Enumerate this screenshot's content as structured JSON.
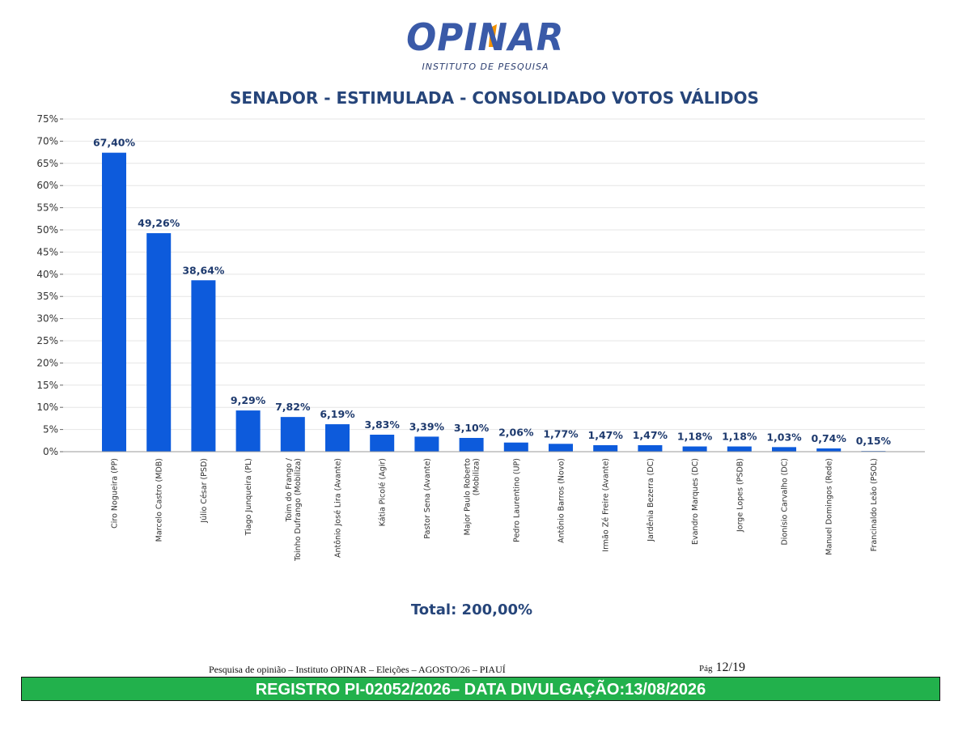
{
  "logo": {
    "brand": "OPINAR",
    "subtitle": "INSTITUTO DE PESQUISA"
  },
  "colors": {
    "bar": "#0d5bdc",
    "title": "#26457a",
    "label": "#1e3a6e",
    "grid": "#e6e6e6",
    "footer_bar": "#22b14c"
  },
  "chart_data": {
    "type": "bar",
    "title": "SENADOR - ESTIMULADA - CONSOLIDADO VOTOS VÁLIDOS",
    "xlabel": "",
    "ylabel": "",
    "ylim": [
      0,
      75
    ],
    "yticks": [
      "0%",
      "5%",
      "10%",
      "15%",
      "20%",
      "25%",
      "30%",
      "35%",
      "40%",
      "45%",
      "50%",
      "55%",
      "60%",
      "65%",
      "70%",
      "75%"
    ],
    "grid": true,
    "categories": [
      [
        "Ciro Nogueira (PP)"
      ],
      [
        "Marcelo Castro (MDB)"
      ],
      [
        "Júlio César (PSD)"
      ],
      [
        "Tiago Junqueira (PL)"
      ],
      [
        "Toim do Frango /",
        "Toinho Dufrango (Mobiliza)"
      ],
      [
        "Antônio José Lira (Avante)"
      ],
      [
        "Kátia Picolé (Agir)"
      ],
      [
        "Pastor Sena (Avante)"
      ],
      [
        "Major Paulo Roberto",
        "(Mobiliza)"
      ],
      [
        "Pedro Laurentino (UP)"
      ],
      [
        "Antônio Barros (Novo)"
      ],
      [
        "Irmão Zé Freire (Avante)"
      ],
      [
        "Jardênia Bezerra (DC)"
      ],
      [
        "Evandro Marques (DC)"
      ],
      [
        "Jorge Lopes (PSDB)"
      ],
      [
        "Dionísio Carvalho (DC)"
      ],
      [
        "Manuel Domingos (Rede)"
      ],
      [
        "Francinaldo Leão (PSOL)"
      ]
    ],
    "values": [
      67.4,
      49.26,
      38.64,
      9.29,
      7.82,
      6.19,
      3.83,
      3.39,
      3.1,
      2.06,
      1.77,
      1.47,
      1.47,
      1.18,
      1.18,
      1.03,
      0.74,
      0.15
    ],
    "value_labels": [
      "67,40%",
      "49,26%",
      "38,64%",
      "9,29%",
      "7,82%",
      "6,19%",
      "3,83%",
      "3,39%",
      "3,10%",
      "2,06%",
      "1,77%",
      "1,47%",
      "1,47%",
      "1,18%",
      "1,18%",
      "1,03%",
      "0,74%",
      "0,15%"
    ],
    "total_text": "Total: 200,00%"
  },
  "footer": {
    "text": "Pesquisa de opinião – Instituto OPINAR – Eleições – AGOSTO/26 – PIAUÍ",
    "page_label": "Pág",
    "page_value": "12/19",
    "registro": "REGISTRO PI-02052/2026– DATA DIVULGAÇÃO:13/08/2026"
  }
}
